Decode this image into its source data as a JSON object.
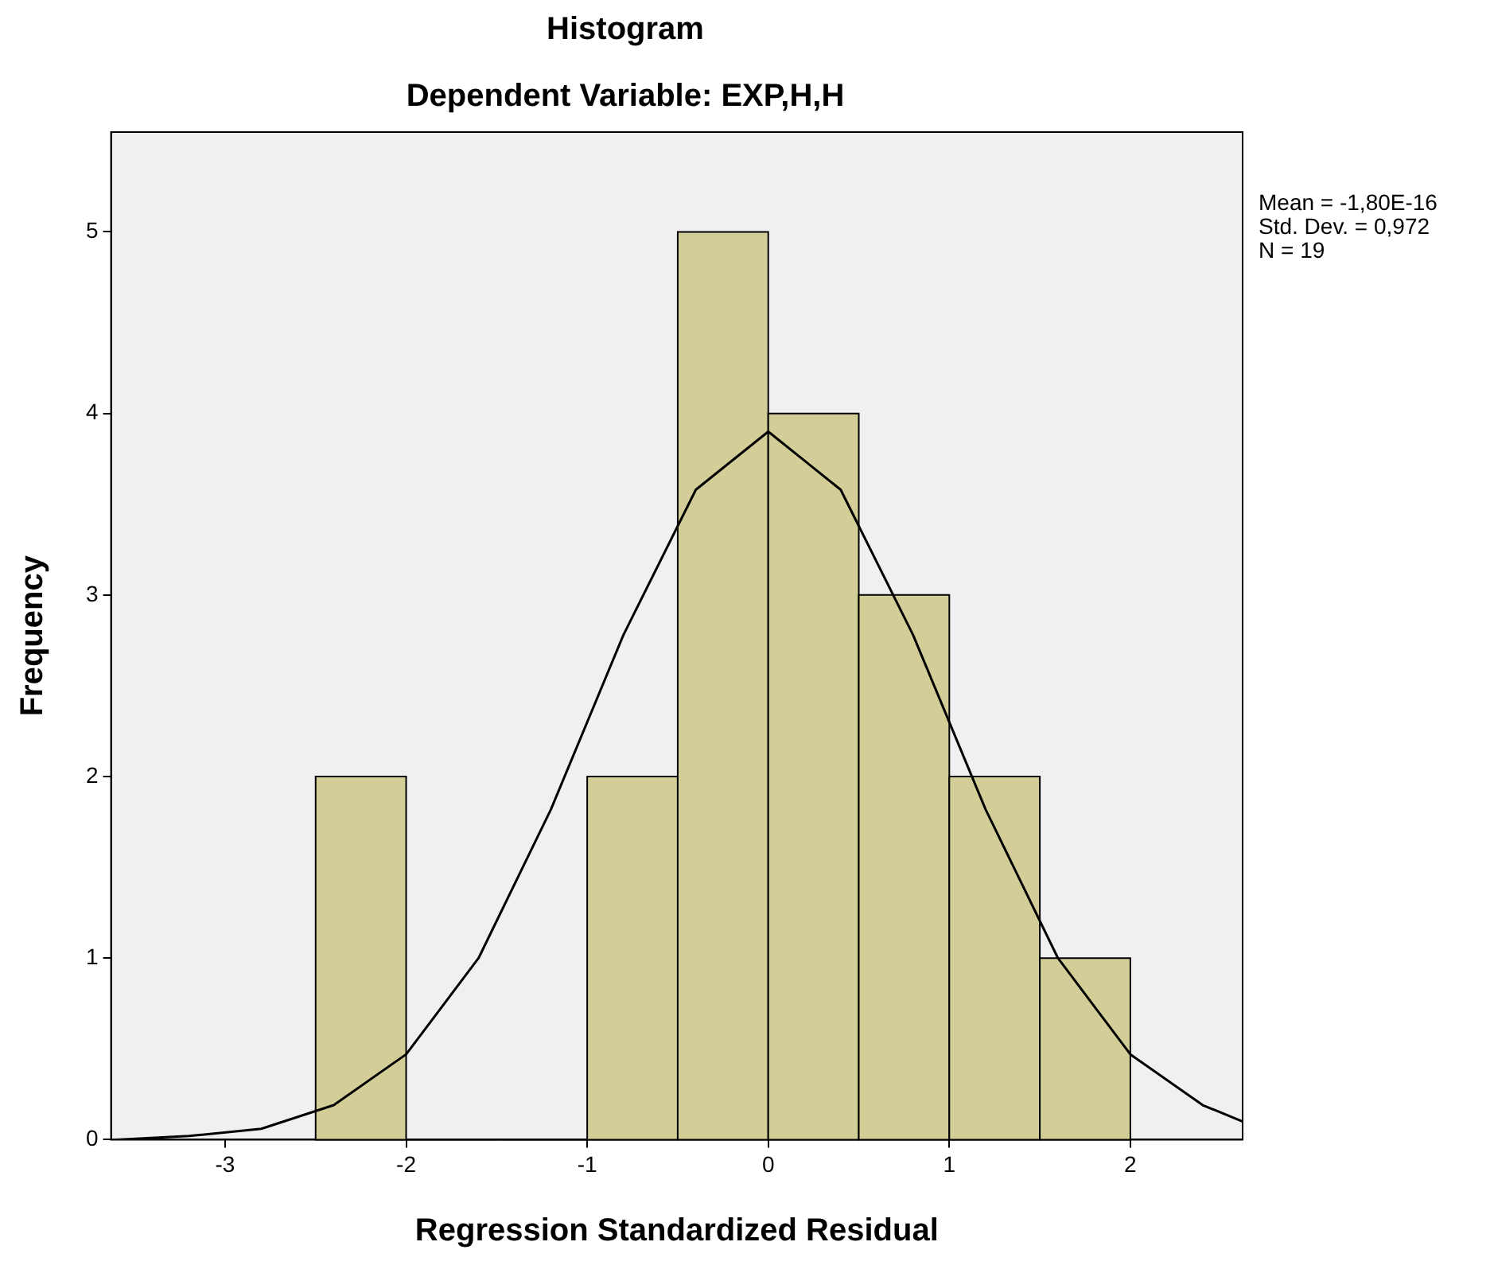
{
  "chart_data": {
    "type": "histogram",
    "title": "Histogram",
    "subtitle": "Dependent Variable: EXP,H,H",
    "xlabel": "Regression Standardized Residual",
    "ylabel": "Frequency",
    "bins": [
      -2.5,
      -2.0,
      -1.5,
      -1.0,
      -0.5,
      0.0,
      0.5,
      1.0,
      1.5,
      2.0
    ],
    "values": [
      2,
      0,
      0,
      2,
      5,
      4,
      3,
      2,
      1
    ],
    "color": "#d3ce97",
    "series": [
      {
        "type": "line",
        "color": "#000000",
        "x": [
          -3.6,
          -3.2,
          -2.8,
          -2.4,
          -2.0,
          -1.6,
          -1.2,
          -0.8,
          -0.4,
          0.0,
          0.4,
          0.8,
          1.2,
          1.6,
          2.0,
          2.4,
          2.62
        ],
        "values": [
          0.0,
          0.02,
          0.06,
          0.19,
          0.47,
          1.0,
          1.82,
          2.78,
          3.58,
          3.9,
          3.58,
          2.78,
          1.82,
          1.0,
          0.47,
          0.19,
          0.1
        ]
      }
    ],
    "xlim": [
      -3.63,
      2.62
    ],
    "xticks": [
      -3,
      -2,
      -1,
      0,
      1,
      2
    ],
    "ylim": [
      0,
      5.55
    ],
    "yticks": [
      0,
      1,
      2,
      3,
      4,
      5
    ],
    "annotations": [
      "Mean = -1,80E-16",
      "Std. Dev. = 0,972",
      "N = 19"
    ],
    "grid": false,
    "legend": false,
    "marker": "none",
    "line_style": "solid"
  }
}
